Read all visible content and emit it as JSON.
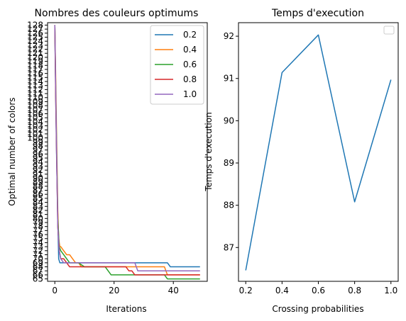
{
  "chart_data": [
    {
      "type": "line",
      "title": "Nombres des couleurs optimums",
      "xlabel": "Iterations",
      "ylabel": "Optimal number of colors",
      "xlim": [
        -2.45,
        51.45
      ],
      "ylim": [
        64.4,
        128.6
      ],
      "x_ticks": [
        0,
        20,
        40
      ],
      "y_tick_labels": [
        "128",
        "127",
        "126",
        "125",
        "124",
        "123",
        "122",
        "121",
        "120",
        "119",
        "118",
        "117",
        "116",
        "115",
        "114",
        "113",
        "112",
        "111",
        "110",
        "109",
        "108",
        "107",
        "106",
        "105",
        "104",
        "103",
        "102",
        "101",
        "100",
        "99",
        "98",
        "97",
        "96",
        "95",
        "94",
        "93",
        "92",
        "91",
        "90",
        "89",
        "88",
        "87",
        "86",
        "85",
        "84",
        "83",
        "82",
        "81",
        "80",
        "79",
        "78",
        "77",
        "76",
        "75",
        "74",
        "73",
        "72",
        "71",
        "70",
        "69",
        "68",
        "67",
        "66",
        "65"
      ],
      "legend_position": "top-right",
      "grid": false,
      "series": [
        {
          "name": "0.2",
          "color": "#1f77b4",
          "x": [
            0,
            0.3,
            0.6,
            1.0,
            1.3,
            1.7,
            2,
            3,
            4,
            5,
            10,
            20,
            30,
            38,
            39,
            40,
            49
          ],
          "y": [
            128,
            110,
            95,
            80,
            70,
            69,
            69,
            69,
            69,
            69,
            69,
            69,
            69,
            69,
            68,
            68,
            68
          ]
        },
        {
          "name": "0.4",
          "color": "#ff7f0e",
          "x": [
            0,
            0.3,
            0.6,
            1.0,
            1.3,
            1.7,
            2,
            3,
            4,
            5,
            6,
            7,
            8,
            9,
            10,
            20,
            30,
            37,
            38,
            49
          ],
          "y": [
            128,
            115,
            100,
            82,
            75,
            73,
            73,
            72,
            71,
            71,
            70,
            69,
            69,
            68,
            68,
            68,
            68,
            68,
            66,
            66
          ]
        },
        {
          "name": "0.6",
          "color": "#2ca02c",
          "x": [
            0,
            0.3,
            0.6,
            1.0,
            1.5,
            2,
            3,
            4,
            5,
            8,
            10,
            17,
            18,
            19,
            20,
            25,
            30,
            37,
            38,
            49
          ],
          "y": [
            128,
            112,
            98,
            80,
            73,
            72,
            71,
            70,
            69,
            69,
            68,
            68,
            67,
            66,
            66,
            66,
            66,
            66,
            65,
            65
          ]
        },
        {
          "name": "0.8",
          "color": "#d62728",
          "x": [
            0,
            0.3,
            0.6,
            1.0,
            1.5,
            2,
            3,
            4,
            5,
            10,
            20,
            24,
            25,
            26,
            27,
            30,
            40,
            49
          ],
          "y": [
            128,
            110,
            96,
            78,
            72,
            70,
            70,
            69,
            68,
            68,
            68,
            68,
            67,
            67,
            66,
            66,
            66,
            66
          ]
        },
        {
          "name": "1.0",
          "color": "#9467bd",
          "x": [
            0,
            0.3,
            0.6,
            1.0,
            1.5,
            2,
            3,
            5,
            10,
            20,
            27,
            28,
            40,
            49
          ],
          "y": [
            128,
            112,
            96,
            78,
            72,
            70,
            69,
            69,
            69,
            69,
            69,
            67,
            67,
            67
          ]
        }
      ]
    },
    {
      "type": "line",
      "title": "Temps d'execution",
      "xlabel": "Crossing probabilities",
      "ylabel": "Temps d'execution",
      "xlim": [
        0.16,
        1.04
      ],
      "ylim": [
        86.2,
        92.32
      ],
      "x_ticks": [
        0.2,
        0.4,
        0.6,
        0.8,
        1.0
      ],
      "y_ticks": [
        87,
        88,
        89,
        90,
        91,
        92
      ],
      "legend_position": "top-right",
      "legend_empty": true,
      "grid": false,
      "series": [
        {
          "color": "#1f77b4",
          "x": [
            0.2,
            0.4,
            0.6,
            0.8,
            1.0
          ],
          "y": [
            86.46,
            91.14,
            92.03,
            88.08,
            90.97
          ]
        }
      ]
    }
  ]
}
